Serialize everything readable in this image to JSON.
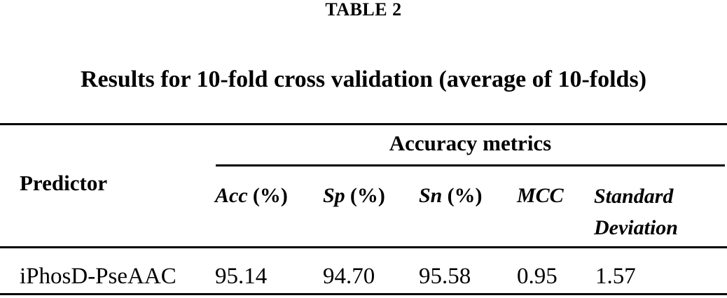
{
  "colors": {
    "background": "#ffffff",
    "text": "#000000",
    "rule": "#000000"
  },
  "table": {
    "title": "TABLE 2",
    "caption": "Results for 10-fold cross validation (average of 10-folds)",
    "group_header": "Accuracy metrics",
    "row_header": "Predictor",
    "columns": [
      {
        "name": "Acc",
        "unit": "(%)"
      },
      {
        "name": "Sp",
        "unit": "(%)"
      },
      {
        "name": "Sn",
        "unit": "(%)"
      },
      {
        "name": "MCC",
        "unit": ""
      },
      {
        "name": "Standard Deviation",
        "unit": ""
      }
    ],
    "rows": [
      {
        "predictor": "iPhosD-PseAAC",
        "values": [
          "95.14",
          "94.70",
          "95.58",
          "0.95",
          "1.57"
        ]
      }
    ]
  }
}
